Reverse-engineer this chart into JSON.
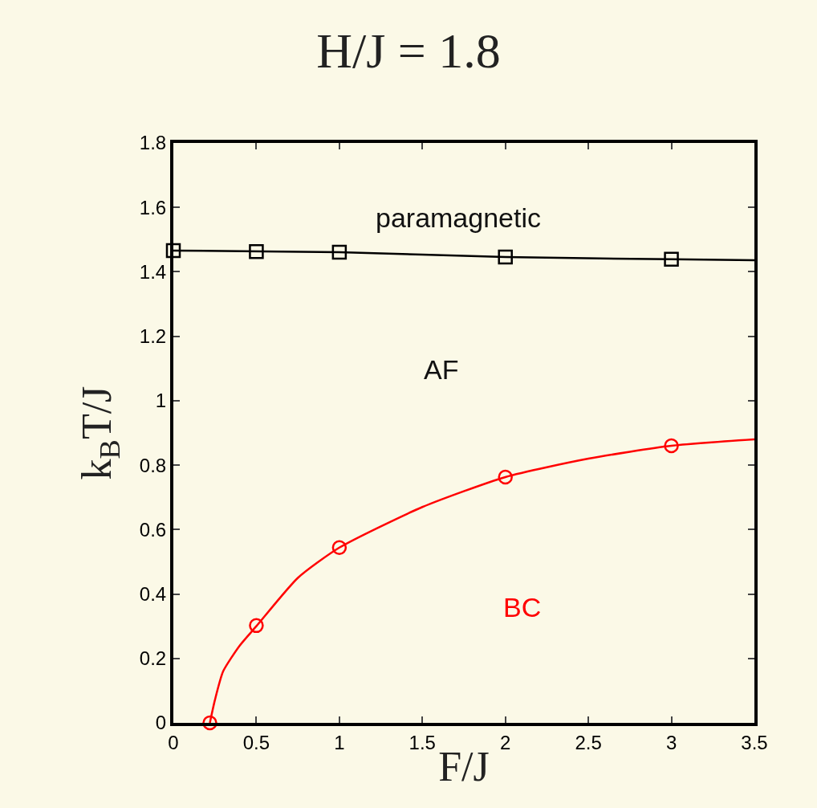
{
  "chart_data": {
    "type": "line",
    "title": "H/J = 1.8",
    "xlabel": "F/J",
    "ylabel": "k$_{B}$T/J",
    "xlim": [
      0,
      3.5
    ],
    "xticks": [
      0,
      0.5,
      1,
      1.5,
      2,
      2.5,
      3,
      3.5
    ],
    "ylim": [
      0,
      1.8
    ],
    "yticks": [
      0,
      0.2,
      0.4,
      0.6,
      0.8,
      1,
      1.2,
      1.4,
      1.6,
      1.8
    ],
    "grid": false,
    "series": [
      {
        "color": "#000000",
        "x": [
          0,
          1,
          2,
          3,
          3.5
        ],
        "values": [
          1.466,
          1.461,
          1.446,
          1.439,
          1.436
        ],
        "marker": "none"
      },
      {
        "type": "scatter",
        "color": "#000000",
        "x": [
          0,
          0.5,
          1,
          2,
          3
        ],
        "values": [
          1.466,
          1.463,
          1.461,
          1.446,
          1.439
        ],
        "marker": "square"
      },
      {
        "color": "#ff0000",
        "x": [
          0.22,
          0.25,
          0.3,
          0.4,
          0.5,
          0.75,
          1,
          1.5,
          2,
          2.5,
          3,
          3.5
        ],
        "values": [
          0,
          0.07,
          0.16,
          0.24,
          0.3,
          0.45,
          0.544,
          0.67,
          0.763,
          0.82,
          0.86,
          0.88
        ],
        "marker": "none"
      },
      {
        "type": "scatter",
        "color": "#ff0000",
        "x": [
          0.22,
          0.5,
          1,
          2,
          3
        ],
        "values": [
          0,
          0.302,
          0.544,
          0.763,
          0.86
        ],
        "marker": "circle"
      }
    ],
    "annotations": [
      "paramagnetic",
      "AF",
      "BC"
    ]
  }
}
